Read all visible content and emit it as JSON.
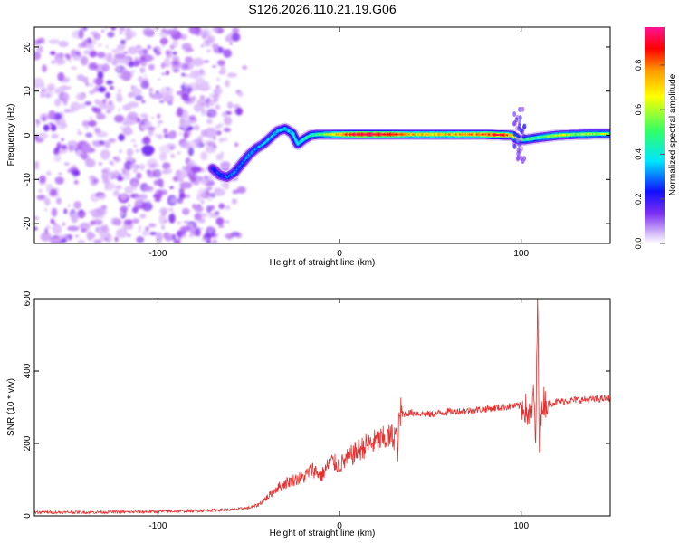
{
  "figure_title": "S126.2026.110.21.19.G06",
  "chart_data": [
    {
      "type": "heatmap",
      "title": "S126.2026.110.21.19.G06",
      "xlabel": "Height of straight line (km)",
      "ylabel": "Frequency (Hz)",
      "xlim": [
        -168,
        149
      ],
      "ylim": [
        -24.5,
        24.5
      ],
      "xticks": [
        -100,
        0,
        100
      ],
      "xtick_labels": [
        "-100",
        "0",
        "100"
      ],
      "yticks": [
        -20,
        -10,
        0,
        10,
        20
      ],
      "ytick_labels": [
        "-20",
        "-10",
        "0",
        "10",
        "20"
      ],
      "colorbar": {
        "label": "Normalized spectral amplitude",
        "range": [
          0.0,
          0.97
        ],
        "ticks": [
          0.0,
          0.2,
          0.4,
          0.6,
          0.8
        ],
        "tick_labels": [
          "0.0",
          "0.2",
          "0.4",
          "0.6",
          "0.8"
        ],
        "colors": [
          "#ffffff",
          "#9a3df2",
          "#1010ff",
          "#00e5ff",
          "#33ff66",
          "#ffff00",
          "#ff9900",
          "#ff0000",
          "#ff1493"
        ]
      },
      "noise_region_x": [
        -168,
        -58
      ],
      "ridge_frequency": {
        "x": [
          -70,
          -66,
          -62,
          -58,
          -54,
          -50,
          -46,
          -42,
          -38,
          -34,
          -30,
          -26,
          -23,
          -20,
          -16,
          -12,
          -8,
          0,
          20,
          40,
          60,
          80,
          95,
          98,
          102,
          110,
          120,
          130,
          140,
          149
        ],
        "freq": [
          -7.5,
          -9,
          -9.5,
          -8.5,
          -6.5,
          -4.5,
          -3,
          -2,
          -0.5,
          1,
          1.5,
          0.5,
          -2,
          -1,
          0,
          0.2,
          0.2,
          0.2,
          0.2,
          0.2,
          0.2,
          0.2,
          0,
          -1,
          -1,
          -0.5,
          0,
          0.2,
          0.3,
          0.3
        ]
      },
      "ridge_amplitude": {
        "x": [
          -70,
          -60,
          -50,
          -40,
          -30,
          -20,
          -10,
          0,
          10,
          20,
          30,
          40,
          60,
          80,
          90,
          100,
          110,
          120,
          130,
          140,
          149
        ],
        "amp": [
          0.25,
          0.3,
          0.33,
          0.35,
          0.38,
          0.4,
          0.5,
          0.75,
          0.95,
          0.95,
          0.9,
          0.7,
          0.7,
          0.8,
          0.9,
          0.45,
          0.5,
          0.6,
          0.55,
          0.55,
          0.55
        ]
      }
    },
    {
      "type": "line",
      "xlabel": "Height of straight line (km)",
      "ylabel": "SNR (10 * v/v)",
      "xlim": [
        -168,
        149
      ],
      "ylim": [
        0,
        600
      ],
      "xticks": [
        -100,
        0,
        100
      ],
      "xtick_labels": [
        "-100",
        "0",
        "100"
      ],
      "yticks": [
        0,
        200,
        400,
        600
      ],
      "ytick_labels": [
        "0",
        "200",
        "400",
        "600"
      ],
      "color": "#e8302f",
      "series": [
        {
          "x": [
            -168,
            -140,
            -110,
            -80,
            -60,
            -50,
            -45,
            -40,
            -35,
            -30,
            -25,
            -20,
            -15,
            -10,
            -5,
            0,
            5,
            10,
            15,
            20,
            25,
            30,
            31,
            32,
            33,
            40,
            50,
            60,
            70,
            80,
            90,
            100,
            102,
            105,
            107,
            108,
            109,
            110,
            112,
            115,
            120,
            130,
            140,
            149
          ],
          "y": [
            10,
            10,
            11,
            14,
            17,
            22,
            30,
            50,
            75,
            90,
            100,
            105,
            130,
            110,
            150,
            140,
            160,
            180,
            195,
            205,
            212,
            220,
            230,
            180,
            280,
            285,
            280,
            288,
            290,
            295,
            300,
            305,
            300,
            270,
            330,
            200,
            600,
            200,
            320,
            310,
            315,
            320,
            322,
            325
          ]
        }
      ]
    }
  ]
}
